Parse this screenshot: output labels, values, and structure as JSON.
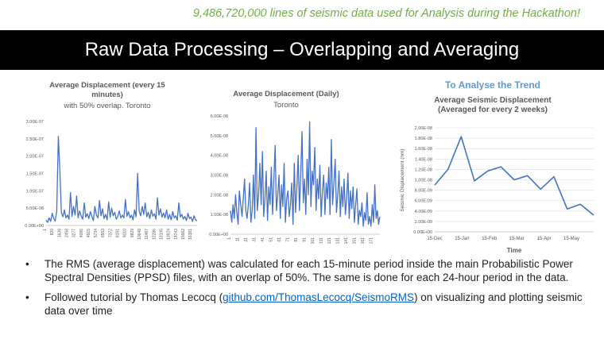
{
  "header": {
    "note": "9,486,720,000 lines of seismic data used for Analysis during the Hackathon!",
    "title": "Raw Data Processing – Overlapping and Averaging"
  },
  "trend_label": "To Analyse the Trend",
  "bullets": {
    "b1": "The RMS (average displacement) was calculated for each 15-minute period inside the main Probabilistic Power Spectral Densities (PPSD) files, with an overlap of 50%. The same is done for each 24-hour period in the data.",
    "b2_pre": "Followed tutorial by Thomas Lecocq (",
    "b2_link": "github.com/ThomasLecocq/SeismoRMS",
    "b2_post": ")  on visualizing and plotting seismic data over time"
  },
  "colors": {
    "line": "#4472c4",
    "accent_green": "#70ad47",
    "accent_blue": "#5b9bd5"
  },
  "chart_data": [
    {
      "type": "line",
      "title": "Average Displacement (every 15 minutes)",
      "subtitle": "with 50% overlap. Toronto",
      "ylim": [
        0,
        3e-07
      ],
      "yticks": [
        "0.00E+00",
        "5.00E-08",
        "1.00E-07",
        "1.50E-07",
        "2.00E-07",
        "2.50E-07",
        "3.00E-07"
      ],
      "xticks": [
        "1",
        "820",
        "1639",
        "2458",
        "3277",
        "4096",
        "4915",
        "5734",
        "6553",
        "7372",
        "8191",
        "9010",
        "9829",
        "10648",
        "11467",
        "12286",
        "13105",
        "13924",
        "14743",
        "15562",
        "16381"
      ],
      "x_max": 17000,
      "y": [
        1.5e-08,
        9e-09,
        2.2e-08,
        1.2e-08,
        3.5e-08,
        2e-08,
        1.3e-08,
        4.2e-08,
        2.57e-07,
        1.6e-07,
        3.8e-08,
        2.5e-08,
        4.5e-08,
        2.2e-08,
        3e-08,
        1.8e-08,
        9.5e-08,
        2.6e-08,
        5.5e-08,
        3e-08,
        8.5e-08,
        2.2e-08,
        4.2e-08,
        2.8e-08,
        1.8e-08,
        6.5e-08,
        2.4e-08,
        3.4e-08,
        2e-08,
        4e-08,
        2.6e-08,
        1.4e-08,
        5.5e-08,
        3e-08,
        2.2e-08,
        7.2e-08,
        2.8e-08,
        4.8e-08,
        2e-08,
        3.2e-08,
        1.6e-08,
        6.8e-08,
        2.4e-08,
        5e-08,
        2.8e-08,
        3.8e-08,
        1.8e-08,
        2.6e-08,
        4.2e-08,
        2.2e-08,
        3e-08,
        2.2e-08,
        7.5e-08,
        2.6e-08,
        4e-08,
        2.2e-08,
        3e-08,
        1.6e-08,
        4.5e-08,
        2.5e-08,
        1.5e-07,
        4.2e-08,
        2.8e-08,
        5.5e-08,
        3.2e-08,
        6.5e-08,
        2.5e-08,
        3.8e-08,
        2e-08,
        4.5e-08,
        2.7e-08,
        3.4e-08,
        1.8e-08,
        8e-08,
        3e-08,
        4.8e-08,
        2.4e-08,
        3.6e-08,
        2.2e-08,
        4.5e-08,
        1.8e-08,
        3.2e-08,
        1.6e-08,
        4e-08,
        2.2e-08,
        2.8e-08,
        1.5e-08,
        6.5e-08,
        2.4e-08,
        3.2e-08,
        1.8e-08,
        2.6e-08,
        1.4e-08,
        3.5e-08,
        2e-08,
        2.4e-08,
        1.2e-08,
        2.8e-08,
        1.6e-08,
        1.4e-08
      ]
    },
    {
      "type": "line",
      "title": "Average Displacement (Daily)",
      "subtitle": "Toronto",
      "ylim": [
        0,
        6e-08
      ],
      "yticks": [
        "0.00E+00",
        "1.00E-08",
        "2.00E-08",
        "3.00E-08",
        "4.00E-08",
        "5.00E-08",
        "6.00E-08"
      ],
      "xticks": [
        "1",
        "11",
        "21",
        "31",
        "41",
        "51",
        "61",
        "71",
        "81",
        "91",
        "101",
        "111",
        "121",
        "131",
        "141",
        "151",
        "161",
        "171"
      ],
      "x_max": 180,
      "y": [
        1.2e-08,
        6e-09,
        1.5e-08,
        8e-09,
        2e-08,
        1.1e-08,
        5e-09,
        2.2e-08,
        1.5e-08,
        9e-09,
        1.8e-08,
        2.8e-08,
        1.2e-08,
        8e-09,
        1.5e-08,
        2.6e-08,
        6e-09,
        1.2e-08,
        3e-08,
        8e-09,
        5.4e-08,
        1.2e-08,
        2e-08,
        3.6e-08,
        1.5e-08,
        4.2e-08,
        9e-09,
        1.8e-08,
        3.2e-08,
        7e-09,
        2.4e-08,
        1.5e-08,
        3.4e-08,
        1e-08,
        2.8e-08,
        4.5e-08,
        1.2e-08,
        2e-08,
        3e-08,
        8e-09,
        2.5e-08,
        1.4e-08,
        3.6e-08,
        6e-09,
        1.8e-08,
        2.2e-08,
        9e-09,
        1.5e-08,
        2.6e-08,
        5e-09,
        3.6e-08,
        1.1e-08,
        2.4e-08,
        4e-08,
        1.2e-08,
        3e-08,
        5.2e-08,
        1.6e-08,
        2.8e-08,
        1e-08,
        3.8e-08,
        2e-08,
        5.7e-08,
        1.4e-08,
        3.2e-08,
        2.5e-08,
        4.4e-08,
        1.2e-08,
        2.8e-08,
        1.8e-08,
        3.5e-08,
        9e-09,
        2.2e-08,
        3e-08,
        1e-08,
        2.6e-08,
        1.8e-08,
        3.4e-08,
        1e-08,
        4.8e-08,
        1.5e-08,
        2.6e-08,
        3.8e-08,
        1.1e-08,
        2e-08,
        3.2e-08,
        9e-09,
        2.4e-08,
        1.4e-08,
        2.8e-08,
        1e-08,
        1.8e-08,
        3.1e-08,
        8e-09,
        2.2e-08,
        1.3e-08,
        2.4e-08,
        6e-09,
        1.5e-08,
        2.3e-08,
        5e-09,
        1.2e-08,
        9e-09,
        1.6e-08,
        4e-09,
        1.1e-08,
        7e-09,
        2.1e-08,
        5e-09,
        9e-09,
        4e-09,
        1.5e-08,
        6e-09,
        2.5e-08,
        8e-09,
        1.2e-08,
        5e-09,
        9e-09
      ]
    },
    {
      "type": "line",
      "title": "Average Seismic Displacement (Averaged for every 2 weeks)",
      "ylabel": "Seismic Displacement (nm)",
      "xlabel": "Time",
      "ylim": [
        0,
        2e-08
      ],
      "yticks": [
        "0.00E+00",
        "2.00E-09",
        "4.00E-09",
        "6.00E-09",
        "8.00E-09",
        "1.00E-08",
        "1.20E-08",
        "1.40E-08",
        "1.60E-08",
        "1.80E-08",
        "2.00E-08"
      ],
      "xticks": [
        "15-Dec",
        "15-Jan",
        "15-Feb",
        "15-Mar",
        "15-Apr",
        "15-May"
      ],
      "y": [
        9e-09,
        1.2e-08,
        1.83e-08,
        9.8e-09,
        1.17e-08,
        1.25e-08,
        1e-08,
        1.08e-08,
        8.2e-09,
        1.06e-08,
        4.4e-09,
        5.3e-09,
        3.2e-09
      ]
    }
  ]
}
